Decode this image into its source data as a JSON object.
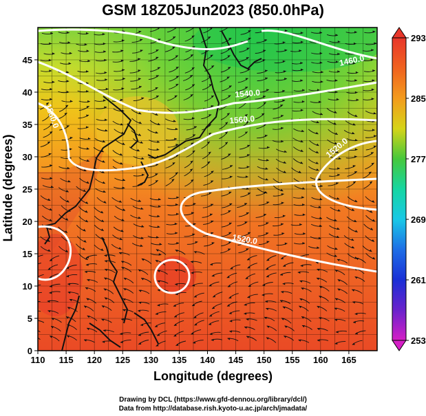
{
  "title": "GSM 18Z05Jun2023 (850.0hPa)",
  "axes": {
    "xlabel": "Longitude (degrees)",
    "ylabel": "Latitude  (degrees)",
    "xticks": [
      "110",
      "115",
      "120",
      "125",
      "130",
      "135",
      "140",
      "145",
      "150",
      "155",
      "160",
      "165"
    ],
    "yticks": [
      "0",
      "5",
      "10",
      "15",
      "20",
      "25",
      "30",
      "35",
      "40",
      "45"
    ]
  },
  "colorbar": {
    "labels": [
      "293",
      "285",
      "277",
      "269",
      "261",
      "253"
    ],
    "colors": [
      "#e8362a",
      "#f39b1d",
      "#46c83c",
      "#19c8e6",
      "#1a2fd6",
      "#d51fc6"
    ]
  },
  "contour_labels": [
    "1460.0",
    "1480.0",
    "1500.0",
    "1520.0",
    "1540.0",
    "1560.0"
  ],
  "credits": [
    "Drawing by DCL (https://www.gfd-dennou.org/library/dcl/)",
    "Data from http://database.rish.kyoto-u.ac.jp/arch/jmadata/"
  ],
  "chart_data": {
    "type": "heatmap",
    "title": "GSM 18Z05Jun2023 (850.0hPa)",
    "xlabel": "Longitude (degrees)",
    "ylabel": "Latitude  (degrees)",
    "xlim": [
      110,
      170
    ],
    "ylim": [
      0,
      50
    ],
    "colorbar_range": [
      253,
      293
    ],
    "colorbar_ticks": [
      253,
      261,
      269,
      277,
      285,
      293
    ],
    "contour_levels": [
      1460,
      1480,
      1500,
      1520,
      1540,
      1560
    ],
    "grid": true
  }
}
